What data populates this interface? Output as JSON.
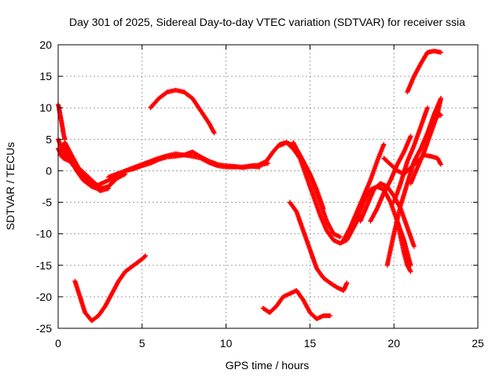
{
  "chart_data": {
    "type": "scatter",
    "title": "Day 301 of 2025, Sidereal Day-to-day VTEC variation (SDTVAR) for receiver ssia",
    "xlabel": "GPS time / hours",
    "ylabel": "SDTVAR / TECUs",
    "xlim": [
      0,
      25
    ],
    "ylim": [
      -25,
      20
    ],
    "xticks": [
      0,
      5,
      10,
      15,
      20,
      25
    ],
    "yticks": [
      -25,
      -20,
      -15,
      -10,
      -5,
      0,
      5,
      10,
      15,
      20
    ],
    "grid": true,
    "marker": "+",
    "color": "#ff0000",
    "series": [
      {
        "x": [
          0.0,
          0.05,
          0.1,
          0.15,
          0.2,
          0.25,
          0.3,
          0.35,
          0.4
        ],
        "y": [
          10.5,
          10.0,
          9.2,
          8.5,
          7.8,
          7.0,
          6.2,
          5.5,
          5.0
        ]
      },
      {
        "x": [
          0.0,
          0.3,
          0.6,
          1.0,
          1.4,
          1.8,
          2.2,
          2.6,
          3.0,
          3.5,
          4.0
        ],
        "y": [
          5.0,
          3.0,
          2.0,
          1.0,
          0.0,
          -1.0,
          -2.0,
          -2.8,
          -2.5,
          -1.2,
          -0.5
        ]
      },
      {
        "x": [
          0.0,
          0.3,
          0.7,
          1.0,
          1.4,
          1.8,
          2.2,
          2.6,
          3.0,
          3.4
        ],
        "y": [
          3.5,
          2.0,
          1.5,
          0.5,
          -1.0,
          -2.0,
          -2.5,
          -2.0,
          -1.5,
          -1.0
        ]
      },
      {
        "x": [
          0.1,
          0.4,
          0.8,
          1.2,
          1.6,
          2.0,
          2.5,
          3.0
        ],
        "y": [
          2.5,
          4.5,
          2.5,
          0.5,
          -1.0,
          -2.0,
          -3.2,
          -2.8
        ]
      },
      {
        "x": [
          0.3,
          0.7,
          1.1,
          1.5,
          2.0,
          2.5,
          3.0,
          3.5
        ],
        "y": [
          4.0,
          2.0,
          0.0,
          -1.5,
          -2.5,
          -3.0,
          -2.5,
          -1.0
        ]
      },
      {
        "x": [
          3.0,
          3.5,
          4.0,
          4.5,
          5.0,
          5.5,
          6.0,
          6.5,
          7.0,
          7.5,
          8.0,
          8.5,
          9.0,
          9.5,
          10.0,
          10.5,
          11.0,
          11.5,
          12.0,
          12.5
        ],
        "y": [
          -1.0,
          -0.5,
          0.0,
          0.3,
          0.8,
          1.2,
          1.8,
          2.2,
          2.3,
          2.5,
          2.3,
          2.0,
          1.3,
          0.8,
          0.6,
          0.6,
          0.6,
          0.8,
          0.9,
          1.2
        ]
      },
      {
        "x": [
          4.0,
          4.5,
          5.0,
          5.5,
          6.0,
          6.5,
          7.0,
          7.5,
          8.0,
          8.5,
          9.0,
          9.5,
          10.0,
          10.5,
          11.0,
          11.5,
          12.0
        ],
        "y": [
          0.0,
          0.5,
          1.0,
          1.5,
          2.0,
          2.4,
          2.7,
          2.5,
          3.0,
          2.2,
          1.5,
          1.0,
          0.8,
          0.7,
          0.5,
          0.7,
          0.6
        ]
      },
      {
        "x": [
          12.0,
          12.4,
          12.8,
          13.2,
          13.6,
          14.0,
          14.4,
          14.8,
          15.2,
          15.6,
          16.0,
          16.4,
          16.8,
          17.2,
          17.6,
          18.0
        ],
        "y": [
          1.0,
          1.5,
          3.0,
          4.2,
          4.5,
          3.5,
          2.0,
          -1.0,
          -4.0,
          -7.0,
          -9.5,
          -11.0,
          -11.5,
          -11.0,
          -9.0,
          -7.0
        ]
      },
      {
        "x": [
          13.2,
          13.6,
          14.0,
          14.4,
          14.8,
          15.2,
          15.6,
          16.0,
          16.4,
          16.8
        ],
        "y": [
          4.0,
          4.5,
          4.0,
          2.5,
          0.5,
          -2.0,
          -5.0,
          -8.0,
          -10.0,
          -10.5
        ]
      },
      {
        "x": [
          14.0,
          14.3,
          14.6,
          15.0,
          15.4,
          15.8
        ],
        "y": [
          4.5,
          3.0,
          1.5,
          -0.5,
          -3.0,
          -6.0
        ]
      },
      {
        "x": [
          5.5,
          6.0,
          6.5,
          7.0,
          7.5,
          8.0,
          8.5,
          9.0,
          9.3
        ],
        "y": [
          10.0,
          11.5,
          12.5,
          12.8,
          12.5,
          11.5,
          9.5,
          7.5,
          6.0
        ]
      },
      {
        "x": [
          1.0,
          1.3,
          1.6,
          2.0,
          2.4,
          2.8,
          3.2,
          3.6,
          4.0,
          4.5,
          5.0,
          5.2
        ],
        "y": [
          -17.5,
          -20.0,
          -22.5,
          -23.8,
          -23.0,
          -21.5,
          -19.5,
          -17.5,
          -16.0,
          -15.0,
          -14.0,
          -13.5
        ]
      },
      {
        "x": [
          12.2,
          12.6,
          13.0,
          13.4,
          13.8,
          14.2,
          14.6,
          15.0,
          15.4,
          15.8,
          16.2
        ],
        "y": [
          -21.8,
          -22.5,
          -21.5,
          -20.0,
          -19.5,
          -19.0,
          -20.5,
          -22.5,
          -23.5,
          -23.0,
          -23.0
        ]
      },
      {
        "x": [
          13.8,
          14.2,
          14.6,
          15.0,
          15.4,
          15.8,
          16.2,
          16.6,
          17.0,
          17.2
        ],
        "y": [
          -5.0,
          -6.5,
          -9.5,
          -12.5,
          -15.5,
          -17.0,
          -17.8,
          -18.5,
          -19.0,
          -17.8
        ]
      },
      {
        "x": [
          17.0,
          17.4,
          17.8,
          18.2,
          18.6,
          19.0,
          19.4
        ],
        "y": [
          -11.0,
          -9.0,
          -6.5,
          -4.0,
          -1.5,
          1.5,
          4.2
        ]
      },
      {
        "x": [
          18.0,
          18.4,
          18.8,
          19.2,
          19.6,
          20.0,
          20.4,
          20.8,
          21.2
        ],
        "y": [
          -8.0,
          -5.5,
          -3.0,
          -2.0,
          -2.5,
          -4.0,
          -6.0,
          -9.0,
          -12.0
        ]
      },
      {
        "x": [
          17.8,
          18.2,
          18.6,
          19.0,
          19.4,
          19.8,
          20.2,
          20.6,
          21.0
        ],
        "y": [
          -7.5,
          -5.0,
          -3.0,
          -2.5,
          -3.0,
          -5.0,
          -8.0,
          -11.0,
          -15.0
        ]
      },
      {
        "x": [
          19.4,
          19.8,
          20.2,
          20.6,
          21.0,
          21.4,
          21.8,
          22.2,
          22.6,
          22.8
        ],
        "y": [
          2.0,
          1.0,
          0.0,
          -0.5,
          0.5,
          1.5,
          2.5,
          2.3,
          2.0,
          1.0
        ]
      },
      {
        "x": [
          18.6,
          19.0,
          19.4,
          19.8,
          20.2,
          20.6,
          21.0
        ],
        "y": [
          -8.0,
          -6.0,
          -3.5,
          -1.5,
          1.0,
          3.0,
          5.5
        ]
      },
      {
        "x": [
          19.6,
          20.0,
          20.4,
          20.8,
          21.2,
          21.6,
          22.0,
          22.4,
          22.8
        ],
        "y": [
          -15.0,
          -10.0,
          -5.5,
          -2.0,
          1.5,
          3.5,
          6.0,
          9.0,
          11.5
        ]
      },
      {
        "x": [
          20.0,
          20.4,
          20.8,
          21.2,
          21.6,
          22.0
        ],
        "y": [
          -5.0,
          -2.0,
          1.5,
          4.0,
          7.0,
          10.0
        ]
      },
      {
        "x": [
          21.0,
          21.4,
          21.8,
          22.2,
          22.6,
          22.8
        ],
        "y": [
          -2.0,
          0.5,
          3.0,
          6.0,
          9.0,
          11.5
        ]
      },
      {
        "x": [
          22.6,
          22.7,
          22.8
        ],
        "y": [
          8.5,
          9.0,
          8.8
        ]
      },
      {
        "x": [
          20.8,
          21.2,
          21.6,
          22.0,
          22.4,
          22.8
        ],
        "y": [
          12.5,
          15.0,
          17.0,
          18.8,
          19.0,
          18.8
        ]
      },
      {
        "x": [
          20.2,
          20.4,
          20.6,
          20.8,
          21.0
        ],
        "y": [
          -8.0,
          -10.5,
          -13.0,
          -15.0,
          -16.0
        ]
      }
    ]
  }
}
